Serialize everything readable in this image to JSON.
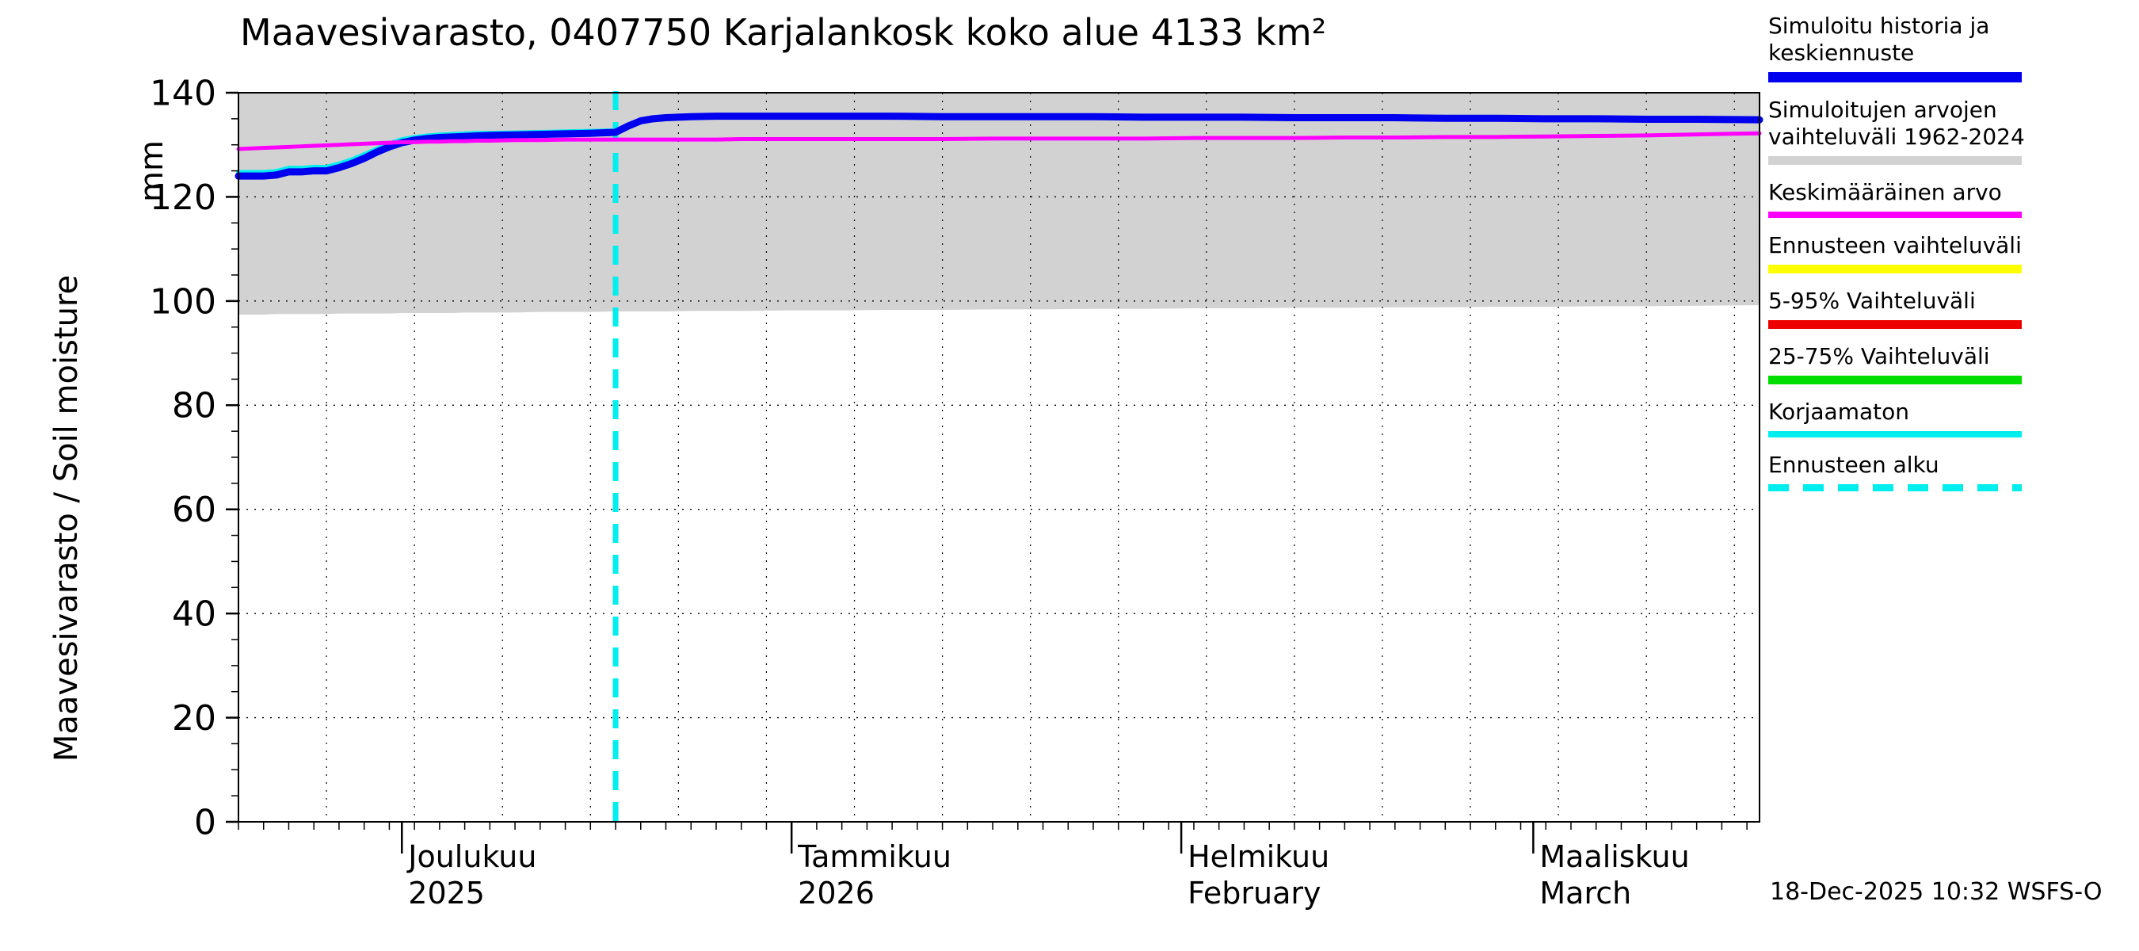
{
  "title": "Maavesivarasto, 0407750 Karjalankosk koko alue 4133 km²",
  "y_axis": {
    "label": "Maavesivarasto / Soil moisture",
    "unit": "mm"
  },
  "timestamp": "18-Dec-2025 10:32 WSFS-O",
  "legend": [
    {
      "label": "Simuloitu historia ja keskiennuste",
      "color": "#0000ee",
      "style": "solid",
      "weight": 13
    },
    {
      "label": "Simuloitujen arvojen vaihteluväli 1962-2024",
      "color": "#d2d2d2",
      "style": "solid",
      "weight": 11
    },
    {
      "label": "Keskimääräinen arvo",
      "color": "#ff00ff",
      "style": "solid",
      "weight": 8
    },
    {
      "label": "Ennusteen vaihteluväli",
      "color": "#ffff00",
      "style": "solid",
      "weight": 11
    },
    {
      "label": "5-95% Vaihteluväli",
      "color": "#ee0000",
      "style": "solid",
      "weight": 11
    },
    {
      "label": "25-75% Vaihteluväli",
      "color": "#00dd00",
      "style": "solid",
      "weight": 11
    },
    {
      "label": "Korjaamaton",
      "color": "#00eeee",
      "style": "solid",
      "weight": 8
    },
    {
      "label": "Ennusteen alku",
      "color": "#00eeee",
      "style": "dashed",
      "weight": 9
    }
  ],
  "chart_data": {
    "type": "line",
    "title": "Maavesivarasto, 0407750 Karjalankosk koko alue 4133 km²",
    "ylabel": "Maavesivarasto / Soil moisture (mm)",
    "ylim": [
      0,
      140
    ],
    "y_ticks": [
      0,
      20,
      40,
      60,
      80,
      100,
      120,
      140
    ],
    "x_range_days": [
      0,
      121
    ],
    "months": [
      {
        "label": "Joulukuu",
        "sub": "2025",
        "day": 13
      },
      {
        "label": "Tammikuu",
        "sub": "2026",
        "day": 44
      },
      {
        "label": "Helmikuu",
        "sub": "February",
        "day": 75
      },
      {
        "label": "Maaliskuu",
        "sub": "March",
        "day": 103
      }
    ],
    "forecast_start_day": 30,
    "forecast_line_color": "#00eeee",
    "grid": true,
    "legend_position": "right",
    "x_days": [
      0,
      1,
      2,
      3,
      4,
      5,
      6,
      7,
      8,
      9,
      10,
      11,
      12,
      13,
      14,
      15,
      16,
      17,
      18,
      19,
      20,
      22,
      24,
      26,
      28,
      30,
      31,
      32,
      33,
      34,
      36,
      38,
      40,
      44,
      48,
      52,
      56,
      60,
      64,
      68,
      72,
      76,
      80,
      84,
      88,
      92,
      96,
      100,
      104,
      108,
      112,
      116,
      121
    ],
    "band": {
      "name": "Simuloitujen arvojen vaihteluväli 1962-2024",
      "color": "#d2d2d2",
      "upper_clipped_at": 140,
      "lower": [
        97.4,
        97.4,
        97.4,
        97.5,
        97.5,
        97.5,
        97.5,
        97.5,
        97.6,
        97.6,
        97.6,
        97.6,
        97.6,
        97.7,
        97.7,
        97.7,
        97.7,
        97.7,
        97.8,
        97.8,
        97.8,
        97.8,
        97.9,
        97.9,
        97.9,
        98.0,
        98.0,
        98.0,
        98.0,
        98.0,
        98.1,
        98.1,
        98.1,
        98.2,
        98.2,
        98.3,
        98.3,
        98.4,
        98.4,
        98.5,
        98.5,
        98.6,
        98.6,
        98.7,
        98.7,
        98.8,
        98.8,
        98.9,
        98.9,
        99.0,
        99.0,
        99.1,
        99.2
      ]
    },
    "series": [
      {
        "id": "korjaamaton",
        "name": "Korjaamaton",
        "color": "#00eeee",
        "width": 6,
        "values": [
          124.7,
          124.7,
          124.7,
          124.9,
          125.5,
          125.5,
          125.7,
          125.7,
          126.3,
          127.1,
          128.1,
          129.2,
          130.2,
          131.0,
          131.4,
          131.7,
          131.9,
          132.0,
          132.1,
          132.2,
          132.2,
          132.3,
          132.4,
          132.5,
          132.6,
          132.7,
          133.8,
          134.7,
          135.0,
          135.2,
          135.4,
          135.5,
          135.5,
          135.5,
          135.5,
          135.5,
          135.4,
          135.4,
          135.4,
          135.4,
          135.3,
          135.3,
          135.3,
          135.2,
          135.2,
          135.2,
          135.1,
          135.1,
          135.0,
          135.0,
          134.9,
          134.9,
          134.8
        ]
      },
      {
        "id": "simuloitu-keskiennuste",
        "name": "Simuloitu historia ja keskiennuste",
        "color": "#0000ee",
        "width": 9,
        "values": [
          124.0,
          124.0,
          124.0,
          124.2,
          124.8,
          124.8,
          125.0,
          125.0,
          125.6,
          126.4,
          127.4,
          128.6,
          129.6,
          130.4,
          130.9,
          131.2,
          131.4,
          131.5,
          131.6,
          131.7,
          131.8,
          131.9,
          132.0,
          132.1,
          132.2,
          132.4,
          133.6,
          134.6,
          135.0,
          135.2,
          135.4,
          135.5,
          135.5,
          135.5,
          135.5,
          135.5,
          135.4,
          135.4,
          135.4,
          135.4,
          135.3,
          135.3,
          135.3,
          135.2,
          135.2,
          135.2,
          135.1,
          135.1,
          135.0,
          135.0,
          134.9,
          134.9,
          134.8
        ]
      },
      {
        "id": "keskimaarainen-arvo",
        "name": "Keskimääräinen arvo",
        "color": "#ff00ff",
        "width": 5,
        "values": [
          129.2,
          129.3,
          129.4,
          129.5,
          129.6,
          129.7,
          129.8,
          129.9,
          130.0,
          130.1,
          130.2,
          130.3,
          130.4,
          130.5,
          130.5,
          130.6,
          130.6,
          130.7,
          130.7,
          130.8,
          130.8,
          130.9,
          130.9,
          131.0,
          131.0,
          131.0,
          131.0,
          131.0,
          131.0,
          131.0,
          131.0,
          131.0,
          131.1,
          131.1,
          131.1,
          131.1,
          131.1,
          131.2,
          131.2,
          131.2,
          131.2,
          131.3,
          131.3,
          131.3,
          131.4,
          131.4,
          131.5,
          131.5,
          131.6,
          131.7,
          131.8,
          132.0,
          132.2
        ]
      }
    ]
  }
}
